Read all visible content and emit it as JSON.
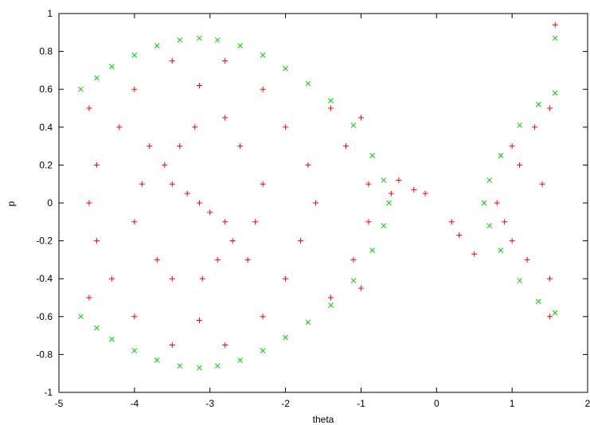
{
  "chart_data": {
    "type": "scatter",
    "title": "",
    "xlabel": "theta",
    "ylabel": "p",
    "xlim": [
      -5,
      2
    ],
    "ylim": [
      -1,
      1
    ],
    "x_ticks": [
      "-5",
      "-4",
      "-3",
      "-2",
      "-1",
      "0",
      "1",
      "2"
    ],
    "y_ticks": [
      "1",
      "0.8",
      "0.6",
      "0.4",
      "0.2",
      "0",
      "-0.2",
      "-0.4",
      "-0.6",
      "-0.8",
      "-1"
    ],
    "grid": false,
    "legend": false,
    "series": [
      {
        "marker": "+",
        "color": "#ff0000",
        "description_points": "dense cloud filling the separatrix region",
        "points": [
          [
            -3.14,
            0.0
          ],
          [
            -3.3,
            0.05
          ],
          [
            -3.0,
            -0.05
          ],
          [
            -3.5,
            0.1
          ],
          [
            -2.8,
            -0.1
          ],
          [
            -3.6,
            0.2
          ],
          [
            -2.7,
            -0.2
          ],
          [
            -3.4,
            0.3
          ],
          [
            -2.9,
            -0.3
          ],
          [
            -3.2,
            0.4
          ],
          [
            -3.1,
            -0.4
          ],
          [
            -3.8,
            0.3
          ],
          [
            -2.5,
            -0.3
          ],
          [
            -3.9,
            0.1
          ],
          [
            -2.4,
            -0.1
          ],
          [
            -4.0,
            -0.1
          ],
          [
            -2.3,
            0.1
          ],
          [
            -3.7,
            -0.3
          ],
          [
            -2.6,
            0.3
          ],
          [
            -3.5,
            -0.4
          ],
          [
            -2.8,
            0.45
          ],
          [
            -4.2,
            0.4
          ],
          [
            -2.0,
            -0.4
          ],
          [
            -4.3,
            -0.4
          ],
          [
            -2.0,
            0.4
          ],
          [
            -4.5,
            0.2
          ],
          [
            -1.8,
            -0.2
          ],
          [
            -4.5,
            -0.2
          ],
          [
            -1.7,
            0.2
          ],
          [
            -4.6,
            0.0
          ],
          [
            -1.6,
            0.0
          ],
          [
            -3.14,
            0.62
          ],
          [
            -3.14,
            -0.62
          ],
          [
            -4.0,
            0.6
          ],
          [
            -2.3,
            -0.6
          ],
          [
            -4.0,
            -0.6
          ],
          [
            -2.3,
            0.6
          ],
          [
            -1.2,
            0.3
          ],
          [
            -1.1,
            -0.3
          ],
          [
            -0.9,
            0.1
          ],
          [
            -0.9,
            -0.1
          ],
          [
            -1.4,
            0.5
          ],
          [
            -1.4,
            -0.5
          ],
          [
            -3.5,
            0.75
          ],
          [
            -2.8,
            -0.75
          ],
          [
            -3.5,
            -0.75
          ],
          [
            -2.8,
            0.75
          ],
          [
            -4.6,
            0.5
          ],
          [
            -4.6,
            -0.5
          ],
          [
            -1.0,
            0.45
          ],
          [
            -1.0,
            -0.45
          ],
          [
            -0.6,
            0.05
          ],
          [
            -0.3,
            0.07
          ],
          [
            -0.15,
            0.05
          ],
          [
            0.2,
            -0.1
          ],
          [
            0.3,
            -0.17
          ],
          [
            0.5,
            -0.27
          ],
          [
            -0.5,
            0.12
          ],
          [
            1.0,
            0.3
          ],
          [
            1.2,
            -0.3
          ],
          [
            0.9,
            -0.1
          ],
          [
            1.4,
            0.1
          ],
          [
            1.0,
            -0.2
          ],
          [
            1.3,
            0.4
          ],
          [
            1.5,
            -0.4
          ],
          [
            1.1,
            0.2
          ],
          [
            0.8,
            0.0
          ],
          [
            1.5,
            0.5
          ],
          [
            1.57,
            0.94
          ],
          [
            1.5,
            -0.6
          ]
        ]
      },
      {
        "marker": "x",
        "color": "#00cc00",
        "description_points": "separatrix boundary curves",
        "points": [
          [
            -4.71,
            0.6
          ],
          [
            -4.5,
            0.66
          ],
          [
            -4.3,
            0.72
          ],
          [
            -4.0,
            0.78
          ],
          [
            -3.7,
            0.83
          ],
          [
            -3.4,
            0.86
          ],
          [
            -3.14,
            0.87
          ],
          [
            -2.9,
            0.86
          ],
          [
            -2.6,
            0.83
          ],
          [
            -2.3,
            0.78
          ],
          [
            -2.0,
            0.71
          ],
          [
            -1.7,
            0.63
          ],
          [
            -1.4,
            0.54
          ],
          [
            -1.1,
            0.41
          ],
          [
            -0.85,
            0.25
          ],
          [
            -0.7,
            0.12
          ],
          [
            -0.63,
            0.0
          ],
          [
            -0.7,
            -0.12
          ],
          [
            -0.85,
            -0.25
          ],
          [
            -1.1,
            -0.41
          ],
          [
            -1.4,
            -0.54
          ],
          [
            -1.7,
            -0.63
          ],
          [
            -2.0,
            -0.71
          ],
          [
            -2.3,
            -0.78
          ],
          [
            -2.6,
            -0.83
          ],
          [
            -2.9,
            -0.86
          ],
          [
            -3.14,
            -0.87
          ],
          [
            -3.4,
            -0.86
          ],
          [
            -3.7,
            -0.83
          ],
          [
            -4.0,
            -0.78
          ],
          [
            -4.3,
            -0.72
          ],
          [
            -4.5,
            -0.66
          ],
          [
            -4.71,
            -0.6
          ],
          [
            0.63,
            0.0
          ],
          [
            0.7,
            0.12
          ],
          [
            0.85,
            0.25
          ],
          [
            1.1,
            0.41
          ],
          [
            1.35,
            0.52
          ],
          [
            1.57,
            0.58
          ],
          [
            0.7,
            -0.12
          ],
          [
            0.85,
            -0.25
          ],
          [
            1.1,
            -0.41
          ],
          [
            1.35,
            -0.52
          ],
          [
            1.57,
            -0.58
          ],
          [
            1.57,
            0.87
          ]
        ]
      }
    ]
  }
}
